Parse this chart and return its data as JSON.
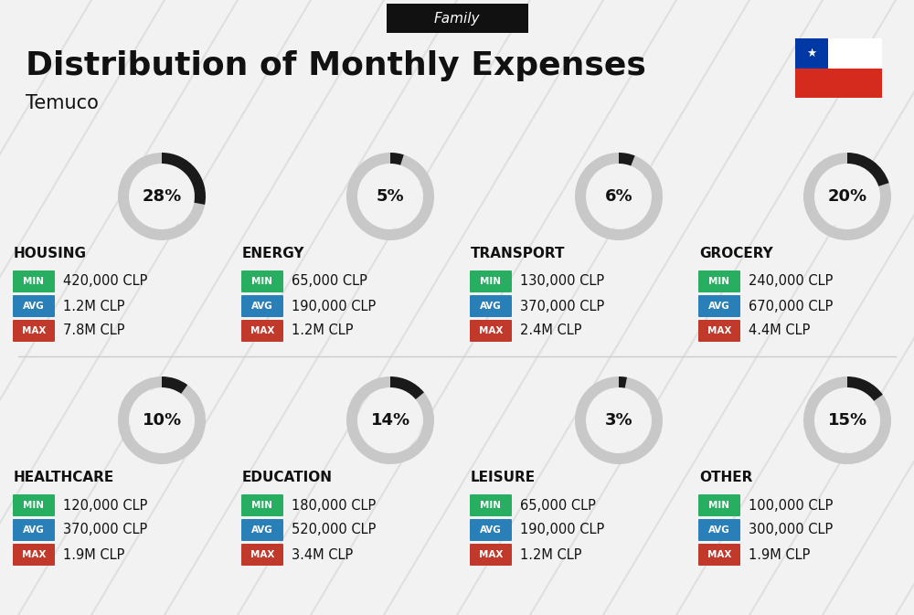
{
  "title": "Distribution of Monthly Expenses",
  "subtitle": "Temuco",
  "header_label": "Family",
  "bg_color": "#f2f2f2",
  "categories": [
    {
      "name": "HOUSING",
      "percent": 28,
      "min": "420,000 CLP",
      "avg": "1.2M CLP",
      "max": "7.8M CLP",
      "row": 0,
      "col": 0
    },
    {
      "name": "ENERGY",
      "percent": 5,
      "min": "65,000 CLP",
      "avg": "190,000 CLP",
      "max": "1.2M CLP",
      "row": 0,
      "col": 1
    },
    {
      "name": "TRANSPORT",
      "percent": 6,
      "min": "130,000 CLP",
      "avg": "370,000 CLP",
      "max": "2.4M CLP",
      "row": 0,
      "col": 2
    },
    {
      "name": "GROCERY",
      "percent": 20,
      "min": "240,000 CLP",
      "avg": "670,000 CLP",
      "max": "4.4M CLP",
      "row": 0,
      "col": 3
    },
    {
      "name": "HEALTHCARE",
      "percent": 10,
      "min": "120,000 CLP",
      "avg": "370,000 CLP",
      "max": "1.9M CLP",
      "row": 1,
      "col": 0
    },
    {
      "name": "EDUCATION",
      "percent": 14,
      "min": "180,000 CLP",
      "avg": "520,000 CLP",
      "max": "3.4M CLP",
      "row": 1,
      "col": 1
    },
    {
      "name": "LEISURE",
      "percent": 3,
      "min": "65,000 CLP",
      "avg": "190,000 CLP",
      "max": "1.2M CLP",
      "row": 1,
      "col": 2
    },
    {
      "name": "OTHER",
      "percent": 15,
      "min": "100,000 CLP",
      "avg": "300,000 CLP",
      "max": "1.9M CLP",
      "row": 1,
      "col": 3
    }
  ],
  "min_color": "#27ae60",
  "avg_color": "#2980b9",
  "max_color": "#c0392b",
  "donut_empty_color": "#c8c8c8",
  "donut_filled_color": "#1a1a1a",
  "label_color": "#111111",
  "title_color": "#111111",
  "flag_blue": "#0039a6",
  "flag_red": "#d52b1e",
  "stripe_color": "#d8d8d8",
  "divider_color": "#cccccc"
}
